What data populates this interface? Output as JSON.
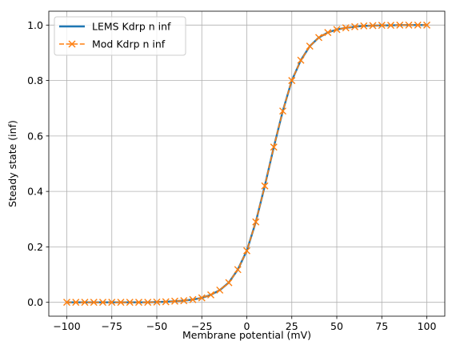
{
  "chart_data": {
    "type": "line",
    "xlabel": "Membrane potential (mV)",
    "ylabel": "Steady state (inf)",
    "xlim": [
      -110,
      110
    ],
    "ylim": [
      -0.05,
      1.05
    ],
    "xticks": [
      -100,
      -75,
      -50,
      -25,
      0,
      25,
      50,
      75,
      100
    ],
    "yticks": [
      0.0,
      0.2,
      0.4,
      0.6,
      0.8,
      1.0
    ],
    "xtick_labels": [
      "−100",
      "−75",
      "−50",
      "−25",
      "0",
      "25",
      "50",
      "75",
      "100"
    ],
    "ytick_labels": [
      "0.0",
      "0.2",
      "0.4",
      "0.6",
      "0.8",
      "1.0"
    ],
    "grid": true,
    "legend_position": "top-left",
    "x": [
      -100,
      -95,
      -90,
      -85,
      -80,
      -75,
      -70,
      -65,
      -60,
      -55,
      -50,
      -45,
      -40,
      -35,
      -30,
      -25,
      -20,
      -15,
      -10,
      -5,
      0,
      5,
      10,
      15,
      20,
      25,
      30,
      35,
      40,
      45,
      50,
      55,
      60,
      65,
      70,
      75,
      80,
      85,
      90,
      95,
      100
    ],
    "series": [
      {
        "name": "LEMS Kdrp n inf",
        "color": "#1f77b4",
        "style": "solid",
        "values": [
          0.0,
          0.0,
          0.0,
          0.0,
          0.0,
          0.0,
          0.0,
          0.0,
          0.0,
          0.0,
          0.001,
          0.002,
          0.004,
          0.006,
          0.01,
          0.016,
          0.027,
          0.044,
          0.071,
          0.118,
          0.186,
          0.29,
          0.42,
          0.56,
          0.69,
          0.8,
          0.873,
          0.924,
          0.955,
          0.973,
          0.984,
          0.99,
          0.994,
          0.997,
          0.998,
          0.999,
          0.999,
          1.0,
          1.0,
          1.0,
          1.0
        ]
      },
      {
        "name": "Mod Kdrp n inf",
        "color": "#ff7f0e",
        "style": "dashed",
        "marker": "x",
        "values": [
          0.0,
          0.0,
          0.0,
          0.0,
          0.0,
          0.0,
          0.0,
          0.0,
          0.0,
          0.0,
          0.001,
          0.002,
          0.004,
          0.006,
          0.01,
          0.016,
          0.027,
          0.044,
          0.071,
          0.118,
          0.186,
          0.29,
          0.42,
          0.56,
          0.69,
          0.8,
          0.873,
          0.924,
          0.955,
          0.973,
          0.984,
          0.99,
          0.994,
          0.997,
          0.998,
          0.999,
          0.999,
          1.0,
          1.0,
          1.0,
          1.0
        ]
      }
    ]
  }
}
